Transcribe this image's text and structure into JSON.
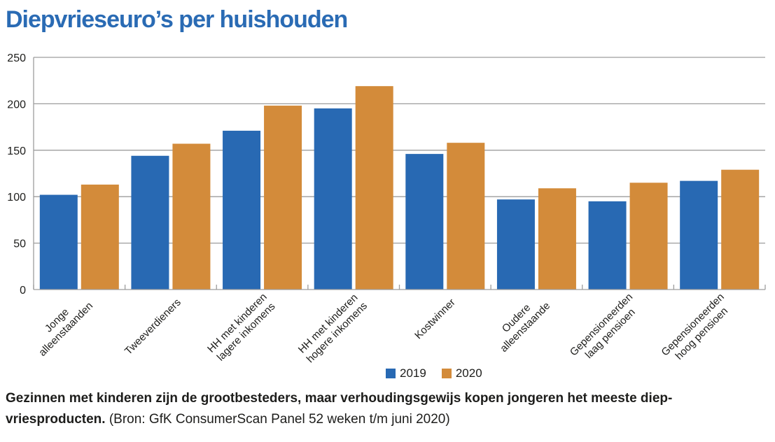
{
  "title": "Diepvrieseuro’s per huishouden",
  "colors": {
    "title": "#2a6bb4",
    "2019": "#2869b3",
    "2020": "#d38b3a",
    "grid": "#9d9d9d"
  },
  "legend": [
    {
      "label": "2019",
      "color": "#2869b3"
    },
    {
      "label": "2020",
      "color": "#d38b3a"
    }
  ],
  "caption": {
    "bold": "Gezinnen met kinderen zijn de grootbesteders, maar verhoudingsgewijs kopen jongeren het meeste diep-vriesproducten.",
    "source": " (Bron: GfK ConsumerScan Panel 52 weken t/m juni 2020)"
  },
  "chart_data": {
    "type": "bar",
    "title": "Diepvrieseuro’s per huishouden",
    "xlabel": "",
    "ylabel": "",
    "ylim": [
      0,
      250
    ],
    "yticks": [
      0,
      50,
      100,
      150,
      200,
      250
    ],
    "grid": true,
    "legend_position": "bottom-center",
    "categories": [
      [
        "Jonge",
        "alleenstaanden"
      ],
      [
        "Tweeverdieners"
      ],
      [
        "HH met kinderen",
        "lagere inkomens"
      ],
      [
        "HH met kinderen",
        "hogere inkomens"
      ],
      [
        "Kostwinner"
      ],
      [
        "Oudere",
        "alleenstaande"
      ],
      [
        "Gepensioneerden",
        "laag pensioen"
      ],
      [
        "Gepensioneerden",
        "hoog pensioen"
      ]
    ],
    "series": [
      {
        "name": "2019",
        "color": "#2869b3",
        "values": [
          102,
          144,
          171,
          195,
          146,
          97,
          95,
          117
        ]
      },
      {
        "name": "2020",
        "color": "#d38b3a",
        "values": [
          113,
          157,
          198,
          219,
          158,
          109,
          115,
          129
        ]
      }
    ]
  }
}
